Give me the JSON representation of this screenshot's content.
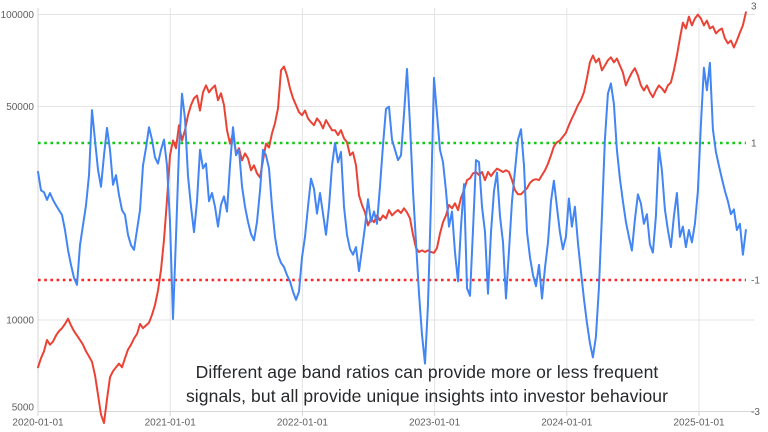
{
  "annotation": {
    "line1": "Different age band ratios can provide more or less frequent",
    "line2": "signals, but all provide unique insights into investor behaviour"
  },
  "colors": {
    "background": "#ffffff",
    "grid": "#e4e4e4",
    "axis_line": "#d6d6d6",
    "tick_text": "#5f5f5f",
    "annotation_text": "#26282b",
    "price_line": "#ea4335",
    "ratio_line": "#4285f4",
    "upper_band": "#10cc10",
    "lower_band": "#fb2424"
  },
  "chart_data": {
    "type": "line",
    "title": "",
    "grid": true,
    "legend": "none",
    "x_axis": {
      "tick_labels": [
        "2020-01-01",
        "2021-01-01",
        "2022-01-01",
        "2023-01-01",
        "2024-01-01",
        "2025-01-01"
      ],
      "tick_years": [
        2020,
        2021,
        2022,
        2023,
        2024,
        2025
      ],
      "range_years": [
        2020.0,
        2025.355
      ]
    },
    "y_axis_left": {
      "scale": "log",
      "tick_labels": [
        "100000",
        "50000",
        "10000",
        "5000"
      ],
      "tick_values": [
        100000,
        50000,
        10000,
        5000
      ],
      "range": [
        5000,
        105000
      ]
    },
    "y_axis_right": {
      "scale": "linear",
      "tick_labels": [
        "3",
        "1",
        "-1",
        "-3"
      ],
      "tick_values": [
        3,
        1,
        -1,
        -3
      ],
      "range": [
        -3,
        3
      ]
    },
    "reference_lines": [
      {
        "name": "upper-threshold",
        "yaxis": "right",
        "value": 1,
        "style": "dotted"
      },
      {
        "name": "lower-threshold",
        "yaxis": "right",
        "value": -1,
        "style": "dotted"
      }
    ],
    "series": [
      {
        "name": "price",
        "yaxis": "left",
        "x_start": 2020.0,
        "x_end": 2025.355,
        "values": [
          7000,
          7500,
          7900,
          8600,
          8300,
          8500,
          8900,
          9200,
          9400,
          9700,
          10100,
          9600,
          9200,
          8900,
          8600,
          8300,
          7900,
          7600,
          7300,
          6600,
          5700,
          4900,
          4600,
          5500,
          6500,
          6800,
          7000,
          7200,
          7000,
          7500,
          8000,
          8300,
          8700,
          9000,
          9700,
          9400,
          9600,
          9800,
          10400,
          11200,
          12500,
          14600,
          18300,
          24700,
          34600,
          38700,
          36500,
          43400,
          38700,
          41800,
          46800,
          50500,
          53200,
          54300,
          48500,
          55600,
          58600,
          55600,
          57300,
          58600,
          52400,
          55200,
          50500,
          41800,
          37800,
          40800,
          35100,
          36500,
          33300,
          35100,
          33800,
          30900,
          32100,
          30200,
          29300,
          33300,
          37800,
          36700,
          40800,
          44100,
          49300,
          65600,
          67600,
          63200,
          57300,
          53200,
          50500,
          47900,
          46800,
          48500,
          45700,
          44400,
          43400,
          45700,
          44400,
          42400,
          45100,
          43400,
          41800,
          41800,
          40300,
          41800,
          39300,
          38200,
          34600,
          35400,
          32100,
          25600,
          23800,
          22500,
          20400,
          21500,
          20900,
          22000,
          21200,
          22000,
          21500,
          22900,
          22000,
          22500,
          22900,
          22400,
          23200,
          22500,
          21500,
          19000,
          17200,
          16700,
          16900,
          16700,
          16900,
          16700,
          16600,
          17200,
          19200,
          20900,
          22000,
          23800,
          23200,
          24100,
          22900,
          25100,
          26600,
          28700,
          29100,
          30200,
          30500,
          29800,
          30500,
          28700,
          30500,
          29600,
          30500,
          31300,
          30900,
          30500,
          30900,
          30500,
          28700,
          26600,
          25800,
          25800,
          26400,
          27000,
          28100,
          28700,
          28900,
          28700,
          29800,
          30900,
          32500,
          34600,
          37000,
          38200,
          38700,
          39800,
          41000,
          43400,
          45700,
          47900,
          50500,
          52400,
          55600,
          61800,
          69700,
          73400,
          69700,
          71800,
          65600,
          68100,
          70800,
          72400,
          69700,
          71800,
          68100,
          64600,
          58600,
          61800,
          64600,
          66700,
          63200,
          58600,
          56400,
          58600,
          55600,
          53600,
          56400,
          58600,
          57300,
          55600,
          58600,
          59900,
          65600,
          73400,
          83500,
          94100,
          90000,
          98400,
          92100,
          97000,
          99900,
          97000,
          92100,
          95500,
          90000,
          91400,
          86700,
          88700,
          90000,
          83500,
          80400,
          82200,
          78000,
          82200,
          87300,
          92100,
          101700
        ]
      },
      {
        "name": "age-band-ratio",
        "yaxis": "right",
        "x_start": 2020.0,
        "x_end": 2025.355,
        "values": [
          0.58,
          0.31,
          0.28,
          0.17,
          0.27,
          0.17,
          0.09,
          0.02,
          -0.05,
          -0.27,
          -0.56,
          -0.78,
          -0.97,
          -1.07,
          -0.49,
          -0.2,
          0.09,
          0.53,
          1.48,
          1.04,
          0.61,
          0.36,
          0.82,
          1.22,
          0.9,
          0.39,
          0.53,
          0.24,
          0.02,
          -0.05,
          -0.34,
          -0.49,
          -0.56,
          -0.27,
          0.02,
          0.67,
          0.93,
          1.23,
          1.05,
          0.79,
          0.7,
          0.9,
          1.05,
          0.67,
          -0.15,
          -1.57,
          -0.37,
          0.9,
          1.72,
          1.35,
          0.52,
          0.07,
          -0.3,
          0.15,
          0.9,
          0.63,
          0.7,
          0.15,
          0.27,
          0.07,
          -0.22,
          0.1,
          0.22,
          0,
          0.67,
          1.23,
          0.82,
          0.9,
          0.37,
          0.07,
          -0.15,
          -0.33,
          -0.42,
          -0.15,
          0.3,
          0.9,
          0.82,
          0.63,
          0.07,
          -0.37,
          -0.63,
          -0.75,
          -0.81,
          -0.93,
          -1.02,
          -1.17,
          -1.29,
          -1.17,
          -0.67,
          -0.37,
          0.07,
          0.48,
          0.33,
          -0.03,
          0.27,
          -0.03,
          -0.34,
          0.07,
          0.67,
          1.0,
          0.72,
          0.87,
          0.07,
          -0.34,
          -0.55,
          -0.63,
          -0.52,
          -0.87,
          -0.55,
          -0.22,
          0.18,
          -0.15,
          0,
          -0.18,
          0.37,
          0.97,
          1.5,
          1.53,
          1.05,
          0.9,
          0.75,
          0.82,
          1.42,
          2.08,
          1.27,
          0.3,
          -0.45,
          -1.2,
          -1.8,
          -2.22,
          -1.35,
          0.15,
          1.95,
          1.42,
          0.9,
          0.72,
          0.3,
          -0.22,
          0,
          -0.6,
          -1.02,
          -0.22,
          0.4,
          -1.12,
          -1.23,
          -0.27,
          0.75,
          0.72,
          0.07,
          -0.3,
          -1.2,
          -0.3,
          0.3,
          0.57,
          -0.07,
          -0.45,
          -1.27,
          -0.57,
          0.15,
          0.6,
          1.05,
          1.2,
          0.67,
          -0.3,
          -0.67,
          -0.93,
          -1.09,
          -0.78,
          -1.27,
          -0.82,
          -0.45,
          0.15,
          0.45,
          0.07,
          -0.3,
          -0.55,
          -0.37,
          0.19,
          -0.22,
          0.07,
          -0.45,
          -0.87,
          -1.27,
          -1.62,
          -1.92,
          -2.13,
          -1.83,
          -1.12,
          -0.07,
          1.05,
          1.72,
          1.87,
          1.57,
          0.9,
          0.48,
          0.15,
          -0.15,
          -0.37,
          -0.57,
          -0.12,
          0.25,
          0.12,
          -0.18,
          -0.04,
          -0.48,
          -0.6,
          -0.07,
          0.93,
          0.6,
          0.03,
          -0.27,
          -0.52,
          -0.07,
          0.27,
          -0.37,
          -0.22,
          -0.52,
          -0.27,
          -0.45,
          -0.18,
          0.3,
          1.27,
          2.1,
          1.77,
          2.17,
          1.2,
          0.87,
          0.67,
          0.48,
          0.3,
          0.15,
          -0.04,
          0.03,
          -0.27,
          -0.18,
          -0.63,
          -0.27
        ]
      }
    ],
    "annotation": {
      "line1": "Different age band ratios can provide more or less frequent",
      "line2": "signals, but all provide unique insights into investor behaviour"
    }
  }
}
